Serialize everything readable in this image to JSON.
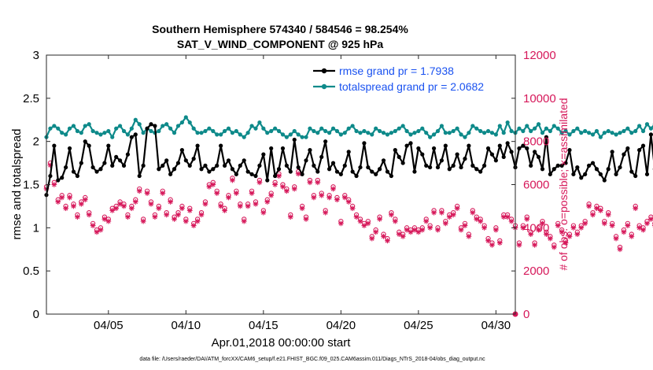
{
  "chart_data": {
    "type": "line",
    "title": "Southern Hemisphere 574340 / 584546 = 98.254%",
    "subtitle": "SAT_V_WIND_COMPONENT @ 925 hPa",
    "xlabel": "Apr.01,2018 00:00:00 start",
    "ylabel": "rmse and totalspread",
    "y2label": "# of obs: o=possible; ×=assimilated",
    "footnote": "data file: /Users/raeder/DAI/ATM_forcXX/CAM6_setup/f.e21.FHIST_BGC.f09_025.CAM6assim.011/Diags_NTrS_2018-04/obs_diag_output.nc",
    "xlim": [
      1,
      31.25
    ],
    "ylim": [
      0,
      3
    ],
    "y2lim": [
      0,
      12000
    ],
    "xticks": [
      5,
      10,
      15,
      20,
      25,
      30
    ],
    "xtick_labels": [
      "04/05",
      "04/10",
      "04/15",
      "04/20",
      "04/25",
      "04/30"
    ],
    "yticks": [
      0,
      0.5,
      1,
      1.5,
      2,
      2.5,
      3
    ],
    "ytick_labels": [
      "0",
      "0.5",
      "1",
      "1.5",
      "2",
      "2.5",
      "3"
    ],
    "y2ticks": [
      0,
      2000,
      4000,
      6000,
      8000,
      10000,
      12000
    ],
    "y2tick_labels": [
      "0",
      "2000",
      "4000",
      "6000",
      "8000",
      "10000",
      "12000"
    ],
    "grid": false,
    "legend_location": "top-right",
    "colors": {
      "rmse": "#000000",
      "spread": "#0e8a8a",
      "obs": "#d6185a",
      "legend_text": "#1a52f0"
    },
    "time_step_days": 0.25,
    "start_day": 1.0,
    "series": [
      {
        "name": "rmse grand pr = 1.7938",
        "axis": "left",
        "marker": "filled-circle",
        "values": [
          1.38,
          1.6,
          1.95,
          1.55,
          1.58,
          1.7,
          1.92,
          1.65,
          1.6,
          1.75,
          2.0,
          1.95,
          1.7,
          1.65,
          1.68,
          1.75,
          1.95,
          1.72,
          1.82,
          1.78,
          1.72,
          1.85,
          2.05,
          2.08,
          1.6,
          1.72,
          2.15,
          2.2,
          2.18,
          1.68,
          1.72,
          1.78,
          1.62,
          1.68,
          1.75,
          1.9,
          1.78,
          1.72,
          1.8,
          1.95,
          1.68,
          1.72,
          1.65,
          1.68,
          1.72,
          1.95,
          1.72,
          1.78,
          1.68,
          1.62,
          1.72,
          1.78,
          1.65,
          1.62,
          1.6,
          1.72,
          1.85,
          1.55,
          1.92,
          1.6,
          1.68,
          1.92,
          1.72,
          1.65,
          2.02,
          1.7,
          1.62,
          1.78,
          1.9,
          1.72,
          1.65,
          1.82,
          2.0,
          1.68,
          1.75,
          1.65,
          1.62,
          1.72,
          1.88,
          1.65,
          1.6,
          1.7,
          1.98,
          1.7,
          1.65,
          1.62,
          1.68,
          1.78,
          1.65,
          1.6,
          1.9,
          1.82,
          1.75,
          1.95,
          1.98,
          1.65,
          1.92,
          1.85,
          1.72,
          1.7,
          1.92,
          1.7,
          1.78,
          1.95,
          1.68,
          1.72,
          1.85,
          1.7,
          1.8,
          1.95,
          1.72,
          1.68,
          1.65,
          1.72,
          1.92,
          1.85,
          1.78,
          1.95,
          1.82,
          1.98,
          1.88,
          1.7,
          1.92,
          1.95,
          1.92,
          1.72,
          1.88,
          1.82,
          1.68,
          2.05,
          1.62,
          1.68,
          1.72,
          1.72,
          1.75,
          1.9,
          1.62,
          1.7,
          1.58,
          1.62,
          1.72,
          1.75,
          1.68,
          1.62,
          1.55,
          1.68,
          1.88,
          1.62,
          1.7,
          1.85,
          1.92,
          1.65,
          1.6,
          1.9,
          1.95,
          1.62,
          2.08,
          1.68,
          1.78,
          1.9,
          1.65,
          1.8,
          1.82,
          1.82,
          1.85
        ]
      },
      {
        "name": "totalspread grand pr = 2.0682",
        "axis": "left",
        "marker": "filled-circle",
        "values": [
          2.05,
          2.15,
          2.18,
          2.15,
          2.1,
          2.08,
          2.15,
          2.18,
          2.12,
          2.1,
          2.18,
          2.2,
          2.12,
          2.1,
          2.08,
          2.1,
          2.12,
          2.05,
          2.15,
          2.18,
          2.12,
          2.08,
          2.15,
          2.25,
          2.2,
          2.1,
          2.15,
          2.12,
          2.1,
          2.12,
          2.18,
          2.2,
          2.15,
          2.1,
          2.18,
          2.22,
          2.28,
          2.22,
          2.15,
          2.1,
          2.1,
          2.12,
          2.15,
          2.12,
          2.08,
          2.08,
          2.12,
          2.15,
          2.1,
          2.12,
          2.08,
          2.05,
          2.1,
          2.18,
          2.15,
          2.22,
          2.15,
          2.1,
          2.12,
          2.15,
          2.12,
          2.08,
          2.05,
          2.08,
          2.12,
          2.08,
          2.05,
          2.05,
          2.15,
          2.12,
          2.1,
          2.15,
          2.12,
          2.1,
          2.15,
          2.12,
          2.08,
          2.1,
          2.15,
          2.18,
          2.12,
          2.1,
          2.12,
          2.1,
          2.08,
          2.15,
          2.12,
          2.1,
          2.08,
          2.1,
          2.12,
          2.15,
          2.18,
          2.12,
          2.08,
          2.1,
          2.12,
          2.15,
          2.1,
          2.05,
          2.08,
          2.12,
          2.18,
          2.1,
          2.1,
          2.12,
          2.15,
          2.08,
          2.05,
          2.1,
          2.18,
          2.15,
          2.12,
          2.1,
          2.12,
          2.1,
          2.08,
          2.18,
          2.1,
          2.22,
          2.12,
          2.1,
          2.15,
          2.12,
          2.18,
          2.12,
          2.15,
          2.2,
          2.1,
          2.15,
          2.12,
          2.18,
          2.15,
          2.1,
          2.12,
          2.08,
          2.12,
          2.15,
          2.1,
          2.12,
          2.1,
          2.08,
          2.12,
          2.05,
          2.1,
          2.12,
          2.1,
          2.08,
          2.1,
          2.12,
          2.15,
          2.1,
          2.12,
          2.18,
          2.12,
          2.2,
          2.15,
          2.2,
          2.12,
          2.15,
          2.1,
          2.18,
          2.15,
          2.22,
          2.15
        ]
      },
      {
        "name": "obs_possible",
        "axis": "right",
        "marker": "circle",
        "values": [
          5900,
          7000,
          6100,
          5300,
          5500,
          5000,
          5500,
          5100,
          4600,
          5200,
          5400,
          4700,
          4200,
          3900,
          4000,
          4500,
          4400,
          4900,
          5000,
          5200,
          5100,
          4600,
          5000,
          5300,
          5800,
          4400,
          5700,
          5200,
          4600,
          5000,
          5700,
          4700,
          5300,
          4500,
          4700,
          5000,
          4400,
          4900,
          4200,
          4400,
          4700,
          5200,
          6000,
          6100,
          5700,
          5100,
          4900,
          5500,
          6300,
          5700,
          5100,
          4400,
          5100,
          5700,
          5200,
          6200,
          4800,
          5300,
          5600,
          6100,
          6500,
          6000,
          5800,
          4600,
          5900,
          6600,
          5000,
          4500,
          6200,
          5500,
          6200,
          5600,
          4800,
          5500,
          5900,
          5400,
          4300,
          5500,
          5300,
          5000,
          4600,
          4400,
          4200,
          4300,
          3600,
          3900,
          4500,
          3700,
          3500,
          4700,
          4400,
          3800,
          3700,
          4000,
          3900,
          4000,
          3900,
          4000,
          4400,
          4100,
          4800,
          4000,
          4800,
          4300,
          4600,
          4700,
          5000,
          4000,
          4200,
          3700,
          4800,
          4500,
          4400,
          4100,
          3500,
          3300,
          4000,
          3400,
          4600,
          4600,
          4400,
          4100,
          3300,
          4100,
          4500,
          3800,
          3300,
          4000,
          4300,
          3800,
          3600,
          3200,
          4200,
          3900,
          3400,
          3700,
          4100,
          3800,
          4100,
          4300,
          5100,
          4700,
          5000,
          4900,
          4300,
          4700,
          4200,
          3600,
          3100,
          3900,
          4200,
          3700,
          5000,
          4100,
          4000,
          4300,
          4500,
          4200,
          4400,
          4100,
          4800,
          4500,
          4000
        ]
      },
      {
        "name": "obs_assimilated",
        "axis": "right",
        "marker": "asterisk",
        "values": [
          5800,
          6900,
          6000,
          5200,
          5400,
          4900,
          5400,
          5000,
          4500,
          5100,
          5300,
          4600,
          4100,
          3800,
          3900,
          4400,
          4300,
          4800,
          4900,
          5100,
          5000,
          4500,
          4900,
          5200,
          5700,
          4300,
          5600,
          5100,
          4500,
          4900,
          5600,
          4600,
          5200,
          4400,
          4600,
          4900,
          4300,
          4800,
          4100,
          4300,
          4600,
          5100,
          5900,
          6000,
          5600,
          5000,
          4800,
          5400,
          6200,
          5600,
          5000,
          4300,
          5000,
          5600,
          5100,
          6100,
          4700,
          5200,
          5500,
          6000,
          6400,
          5900,
          5700,
          4500,
          5800,
          6500,
          4900,
          4400,
          6100,
          5400,
          6100,
          5500,
          4700,
          5400,
          5800,
          5300,
          4200,
          5400,
          5200,
          4900,
          4500,
          4300,
          4100,
          4200,
          3500,
          3800,
          4400,
          3600,
          3400,
          4600,
          4300,
          3700,
          3600,
          3900,
          3800,
          3900,
          3800,
          3900,
          4300,
          4000,
          4700,
          3900,
          4700,
          4200,
          4500,
          4600,
          4900,
          3900,
          4100,
          3600,
          4700,
          4400,
          4300,
          4000,
          3400,
          3200,
          3900,
          3300,
          4500,
          4500,
          4300,
          4000,
          3200,
          4000,
          4400,
          3700,
          3200,
          3900,
          4200,
          3700,
          3500,
          3100,
          4100,
          3800,
          3300,
          3600,
          4000,
          3700,
          4000,
          4200,
          5000,
          4600,
          4900,
          4800,
          4200,
          4600,
          4100,
          3500,
          3000,
          3800,
          4100,
          3600,
          4900,
          4000,
          3900,
          4200,
          4400,
          4100,
          4300,
          4000,
          4700,
          4400,
          3900
        ]
      }
    ]
  }
}
